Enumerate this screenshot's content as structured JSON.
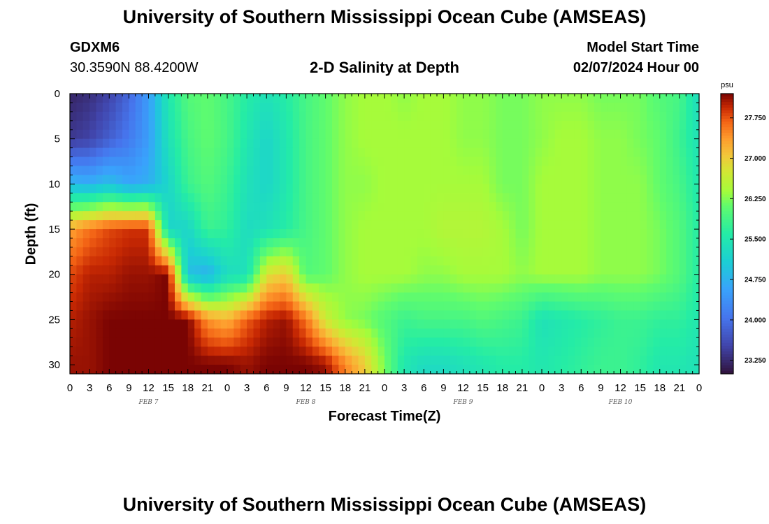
{
  "header": {
    "title": "University of Southern Mississippi Ocean Cube (AMSEAS)",
    "station": "GDXM6",
    "coords": "30.3590N  88.4200W",
    "plot_title": "2-D Salinity at Depth",
    "start_label": "Model Start Time",
    "start_value": "02/07/2024 Hour 00"
  },
  "footer": {
    "title": "University of Southern Mississippi Ocean Cube (AMSEAS)"
  },
  "chart_data": {
    "type": "heatmap",
    "title": "2-D Salinity at Depth",
    "xlabel": "Forecast Time(Z)",
    "ylabel": "Depth (ft)",
    "x": [
      0,
      3,
      6,
      9,
      12,
      15,
      18,
      21,
      24,
      27,
      30,
      33,
      36,
      39,
      42,
      45,
      48,
      51,
      54,
      57,
      60,
      63,
      66,
      69,
      72,
      75,
      78,
      81,
      84,
      87,
      90,
      93,
      96
    ],
    "x_unit": "forecast hour",
    "xlim": [
      0,
      96
    ],
    "x_tick_labels": [
      "0",
      "3",
      "6",
      "9",
      "12",
      "15",
      "18",
      "21",
      "0",
      "3",
      "6",
      "9",
      "12",
      "15",
      "18",
      "21",
      "0",
      "3",
      "6",
      "9",
      "12",
      "15",
      "18",
      "21",
      "0",
      "3",
      "6",
      "9",
      "12",
      "15",
      "18",
      "21",
      "0"
    ],
    "day_labels": [
      {
        "hour": 12,
        "text": "FEB 7"
      },
      {
        "hour": 36,
        "text": "FEB 8"
      },
      {
        "hour": 60,
        "text": "FEB 9"
      },
      {
        "hour": 84,
        "text": "FEB 10"
      }
    ],
    "y": [
      0,
      5,
      10,
      15,
      20,
      25,
      30
    ],
    "ylim": [
      0,
      31
    ],
    "y_inverted": true,
    "y_tick_labels": [
      "0",
      "5",
      "10",
      "15",
      "20",
      "25",
      "30"
    ],
    "values_psu": [
      [
        23.2,
        23.3,
        23.5,
        23.9,
        24.5,
        25.5,
        26.0,
        26.1,
        25.9,
        25.6,
        25.4,
        25.6,
        25.9,
        26.1,
        26.3,
        26.4,
        26.4,
        26.3,
        26.4,
        26.4,
        26.3,
        26.3,
        26.2,
        26.2,
        26.3,
        26.3,
        26.3,
        26.2,
        26.2,
        26.2,
        26.0,
        25.9,
        25.3
      ],
      [
        23.4,
        23.5,
        23.8,
        24.1,
        24.5,
        25.4,
        25.9,
        26.1,
        25.9,
        25.5,
        25.2,
        25.5,
        25.9,
        26.1,
        26.3,
        26.4,
        26.4,
        26.4,
        26.4,
        26.4,
        26.3,
        26.3,
        26.2,
        26.2,
        26.3,
        26.4,
        26.4,
        26.3,
        26.3,
        26.2,
        26.1,
        25.8,
        25.4
      ],
      [
        24.8,
        24.7,
        24.9,
        24.6,
        24.7,
        25.2,
        25.8,
        26.0,
        25.8,
        25.4,
        25.2,
        25.5,
        25.9,
        26.1,
        26.3,
        26.3,
        26.4,
        26.4,
        26.4,
        26.4,
        26.4,
        26.4,
        26.2,
        26.2,
        26.4,
        26.4,
        26.4,
        26.3,
        26.3,
        26.3,
        26.1,
        25.9,
        25.5
      ],
      [
        27.3,
        27.6,
        27.8,
        27.9,
        27.9,
        25.2,
        25.2,
        25.8,
        25.7,
        25.3,
        25.4,
        25.6,
        25.9,
        26.1,
        26.3,
        26.4,
        26.4,
        26.4,
        26.4,
        26.5,
        26.5,
        26.5,
        26.4,
        26.2,
        26.4,
        26.4,
        26.4,
        26.3,
        26.3,
        26.3,
        26.2,
        26.0,
        25.6
      ],
      [
        27.8,
        28.0,
        28.0,
        28.1,
        28.1,
        28.2,
        24.9,
        24.7,
        25.3,
        25.4,
        26.8,
        27.0,
        26.0,
        26.1,
        26.3,
        26.4,
        26.4,
        26.4,
        26.3,
        26.3,
        26.4,
        26.4,
        26.4,
        26.3,
        26.4,
        26.4,
        26.4,
        26.3,
        26.3,
        26.3,
        26.2,
        26.0,
        25.6
      ],
      [
        28.0,
        28.1,
        28.2,
        28.2,
        28.2,
        28.2,
        28.2,
        27.4,
        27.2,
        27.7,
        28.0,
        28.1,
        27.6,
        26.7,
        26.3,
        26.2,
        26.0,
        25.8,
        25.9,
        25.9,
        25.9,
        26.0,
        25.9,
        25.8,
        25.4,
        25.5,
        25.6,
        25.7,
        25.8,
        25.8,
        25.7,
        25.7,
        25.5
      ],
      [
        28.1,
        28.1,
        28.2,
        28.2,
        28.2,
        28.2,
        28.2,
        28.2,
        28.2,
        28.1,
        28.2,
        28.2,
        28.2,
        28.1,
        27.5,
        27.0,
        26.2,
        25.5,
        25.3,
        25.3,
        25.4,
        25.5,
        25.6,
        25.6,
        25.5,
        25.6,
        25.7,
        25.8,
        25.8,
        25.7,
        25.5,
        25.5,
        25.4
      ]
    ],
    "colorbar": {
      "unit": "psu",
      "ticks": [
        "27.750",
        "27.000",
        "26.250",
        "25.500",
        "24.750",
        "24.000",
        "23.250"
      ],
      "range": [
        23.0,
        28.2
      ]
    },
    "grid": false
  }
}
